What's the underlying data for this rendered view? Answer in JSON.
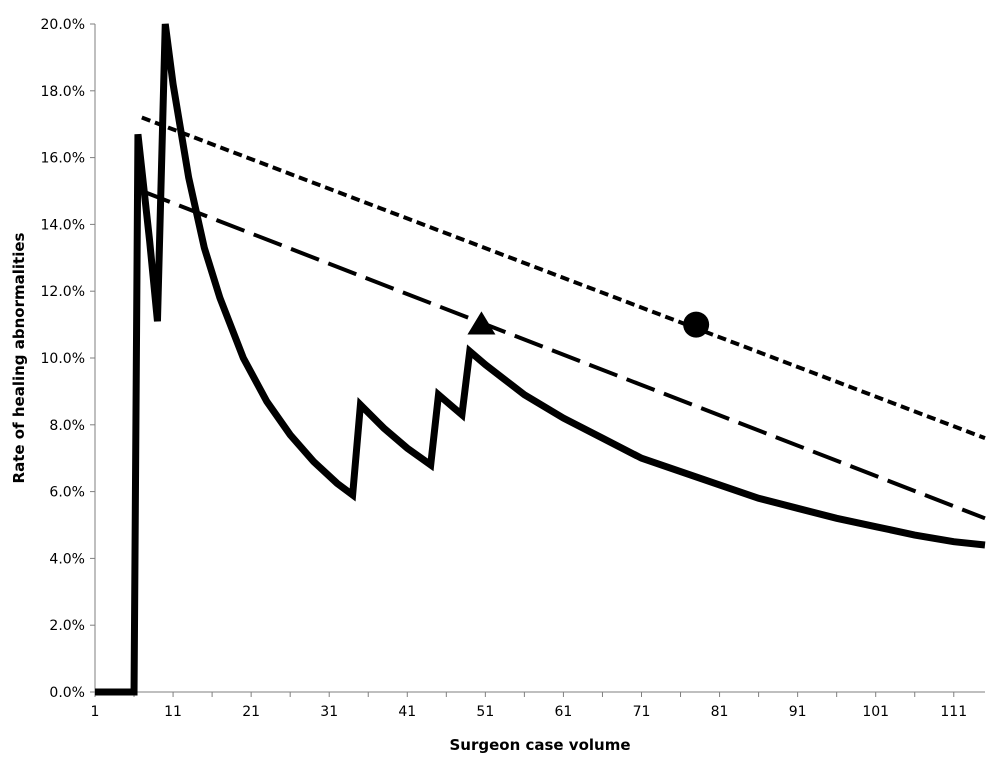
{
  "chart_data": {
    "type": "line",
    "title": "",
    "xlabel": "Surgeon case volume",
    "ylabel": "Rate of healing abnormalities",
    "xlim": [
      1,
      115
    ],
    "ylim": [
      0,
      20
    ],
    "x_ticks": [
      1,
      11,
      21,
      31,
      41,
      51,
      61,
      71,
      81,
      91,
      101,
      111
    ],
    "y_ticks": [
      0,
      2,
      4,
      6,
      8,
      10,
      12,
      14,
      16,
      18,
      20
    ],
    "y_tick_labels": [
      "0.0%",
      "2.0%",
      "4.0%",
      "6.0%",
      "8.0%",
      "10.0%",
      "12.0%",
      "14.0%",
      "16.0%",
      "18.0%",
      "20.0%"
    ],
    "grid": false,
    "legend": "none",
    "series": [
      {
        "style": "solid",
        "color": "#000000",
        "points": [
          [
            1,
            0
          ],
          [
            5,
            0
          ],
          [
            6,
            0
          ],
          [
            6.5,
            16.7
          ],
          [
            8,
            13.5
          ],
          [
            9,
            11.1
          ],
          [
            10,
            20.0
          ],
          [
            11,
            18.2
          ],
          [
            13,
            15.4
          ],
          [
            15,
            13.3
          ],
          [
            17,
            11.8
          ],
          [
            20,
            10.0
          ],
          [
            23,
            8.7
          ],
          [
            26,
            7.7
          ],
          [
            29,
            6.9
          ],
          [
            32,
            6.25
          ],
          [
            34,
            5.9
          ],
          [
            35,
            8.6
          ],
          [
            38,
            7.9
          ],
          [
            41,
            7.3
          ],
          [
            44,
            6.8
          ],
          [
            45,
            8.9
          ],
          [
            47,
            8.5
          ],
          [
            48,
            8.3
          ],
          [
            49,
            10.2
          ],
          [
            51,
            9.8
          ],
          [
            56,
            8.9
          ],
          [
            61,
            8.2
          ],
          [
            66,
            7.6
          ],
          [
            71,
            7.0
          ],
          [
            76,
            6.6
          ],
          [
            81,
            6.2
          ],
          [
            86,
            5.8
          ],
          [
            91,
            5.5
          ],
          [
            96,
            5.2
          ],
          [
            101,
            4.95
          ],
          [
            106,
            4.7
          ],
          [
            111,
            4.5
          ],
          [
            115,
            4.4
          ]
        ]
      },
      {
        "style": "dashed",
        "color": "#000000",
        "marker": "triangle",
        "marker_at": [
          50.5,
          11.0
        ],
        "points": [
          [
            7,
            15.0
          ],
          [
            115,
            5.2
          ]
        ]
      },
      {
        "style": "dotted",
        "color": "#000000",
        "marker": "circle",
        "marker_at": [
          78,
          11.0
        ],
        "points": [
          [
            7,
            17.2
          ],
          [
            115,
            7.6
          ]
        ]
      }
    ]
  }
}
